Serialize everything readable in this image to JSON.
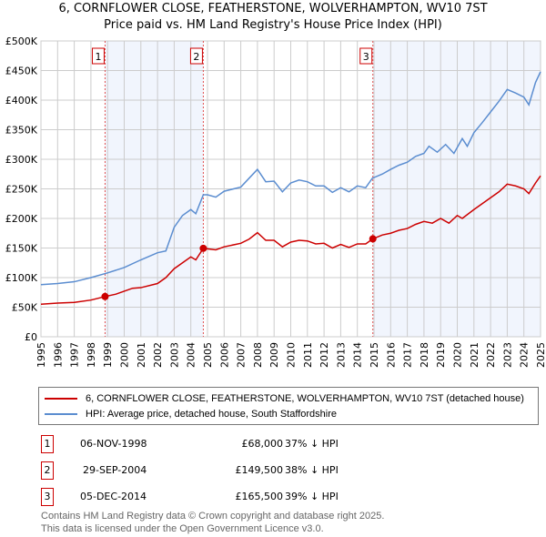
{
  "chart_data": {
    "type": "line",
    "title": "6, CORNFLOWER CLOSE, FEATHERSTONE, WOLVERHAMPTON, WV10 7ST",
    "subtitle": "Price paid vs. HM Land Registry's House Price Index (HPI)",
    "xlim": [
      1995,
      2025
    ],
    "ylim": [
      0,
      500000
    ],
    "x_ticks": [
      "1995",
      "1996",
      "1997",
      "1998",
      "1999",
      "2000",
      "2001",
      "2002",
      "2003",
      "2004",
      "2005",
      "2006",
      "2007",
      "2008",
      "2009",
      "2010",
      "2011",
      "2012",
      "2013",
      "2014",
      "2015",
      "2016",
      "2017",
      "2018",
      "2019",
      "2020",
      "2021",
      "2022",
      "2023",
      "2024",
      "2025"
    ],
    "y_ticks": [
      {
        "v": 0,
        "l": "£0"
      },
      {
        "v": 50000,
        "l": "£50K"
      },
      {
        "v": 100000,
        "l": "£100K"
      },
      {
        "v": 150000,
        "l": "£150K"
      },
      {
        "v": 200000,
        "l": "£200K"
      },
      {
        "v": 250000,
        "l": "£250K"
      },
      {
        "v": 300000,
        "l": "£300K"
      },
      {
        "v": 350000,
        "l": "£350K"
      },
      {
        "v": 400000,
        "l": "£400K"
      },
      {
        "v": 450000,
        "l": "£450K"
      },
      {
        "v": 500000,
        "l": "£500K"
      }
    ],
    "grid": true,
    "series": [
      {
        "name": "6, CORNFLOWER CLOSE, FEATHERSTONE, WOLVERHAMPTON, WV10 7ST (detached house)",
        "color": "#cc0000",
        "points": [
          [
            1995,
            55
          ],
          [
            1996,
            57
          ],
          [
            1997,
            58
          ],
          [
            1998,
            62
          ],
          [
            1998.85,
            68
          ],
          [
            1999.5,
            72
          ],
          [
            2000,
            77
          ],
          [
            2000.5,
            82
          ],
          [
            2001,
            83
          ],
          [
            2002,
            90
          ],
          [
            2002.5,
            100
          ],
          [
            2003,
            115
          ],
          [
            2003.5,
            125
          ],
          [
            2004,
            135
          ],
          [
            2004.3,
            130
          ],
          [
            2004.75,
            149.5
          ],
          [
            2005.5,
            147
          ],
          [
            2006,
            152
          ],
          [
            2007,
            158
          ],
          [
            2007.5,
            165
          ],
          [
            2008,
            176
          ],
          [
            2008.5,
            163
          ],
          [
            2009,
            163
          ],
          [
            2009.5,
            152
          ],
          [
            2010,
            160
          ],
          [
            2010.5,
            163
          ],
          [
            2011,
            162
          ],
          [
            2011.5,
            157
          ],
          [
            2012,
            158
          ],
          [
            2012.5,
            150
          ],
          [
            2013,
            156
          ],
          [
            2013.5,
            151
          ],
          [
            2014,
            157
          ],
          [
            2014.5,
            157
          ],
          [
            2014.93,
            165.5
          ],
          [
            2015.5,
            172
          ],
          [
            2016,
            175
          ],
          [
            2016.5,
            180
          ],
          [
            2017,
            183
          ],
          [
            2017.5,
            190
          ],
          [
            2018,
            195
          ],
          [
            2018.5,
            192
          ],
          [
            2019,
            200
          ],
          [
            2019.5,
            192
          ],
          [
            2020,
            205
          ],
          [
            2020.3,
            200
          ],
          [
            2021,
            215
          ],
          [
            2021.5,
            225
          ],
          [
            2022,
            235
          ],
          [
            2022.5,
            245
          ],
          [
            2023,
            258
          ],
          [
            2023.5,
            255
          ],
          [
            2024,
            250
          ],
          [
            2024.3,
            242
          ],
          [
            2024.7,
            260
          ],
          [
            2025,
            272
          ]
        ]
      },
      {
        "name": "HPI: Average price, detached house, South Staffordshire",
        "color": "#5b8dd0",
        "points": [
          [
            1995,
            88
          ],
          [
            1996,
            90
          ],
          [
            1997,
            93
          ],
          [
            1998,
            100
          ],
          [
            1999,
            108
          ],
          [
            2000,
            117
          ],
          [
            2001,
            130
          ],
          [
            2002,
            142
          ],
          [
            2002.5,
            145
          ],
          [
            2003,
            185
          ],
          [
            2003.5,
            205
          ],
          [
            2004,
            215
          ],
          [
            2004.3,
            208
          ],
          [
            2004.75,
            240
          ],
          [
            2005,
            240
          ],
          [
            2005.5,
            236
          ],
          [
            2006,
            246
          ],
          [
            2007,
            253
          ],
          [
            2007.5,
            268
          ],
          [
            2008,
            283
          ],
          [
            2008.5,
            262
          ],
          [
            2009,
            263
          ],
          [
            2009.5,
            245
          ],
          [
            2010,
            260
          ],
          [
            2010.5,
            265
          ],
          [
            2011,
            262
          ],
          [
            2011.5,
            255
          ],
          [
            2012,
            255
          ],
          [
            2012.5,
            244
          ],
          [
            2013,
            252
          ],
          [
            2013.5,
            245
          ],
          [
            2014,
            255
          ],
          [
            2014.5,
            252
          ],
          [
            2014.9,
            268
          ],
          [
            2015.5,
            275
          ],
          [
            2016,
            283
          ],
          [
            2016.5,
            290
          ],
          [
            2017,
            295
          ],
          [
            2017.5,
            305
          ],
          [
            2018,
            310
          ],
          [
            2018.3,
            322
          ],
          [
            2018.8,
            312
          ],
          [
            2019.3,
            325
          ],
          [
            2019.8,
            310
          ],
          [
            2020.3,
            335
          ],
          [
            2020.6,
            322
          ],
          [
            2021,
            345
          ],
          [
            2021.5,
            362
          ],
          [
            2022,
            380
          ],
          [
            2022.5,
            398
          ],
          [
            2023,
            418
          ],
          [
            2023.5,
            412
          ],
          [
            2024,
            405
          ],
          [
            2024.3,
            392
          ],
          [
            2024.7,
            430
          ],
          [
            2025,
            448
          ]
        ]
      }
    ],
    "sales": [
      {
        "n": "1",
        "x": 1998.85,
        "y": 68
      },
      {
        "n": "2",
        "x": 2004.75,
        "y": 149.5
      },
      {
        "n": "3",
        "x": 2014.93,
        "y": 165.5
      }
    ],
    "shaded": [
      [
        1998.85,
        2004.75
      ],
      [
        2014.93,
        2025
      ]
    ],
    "legend": "below"
  },
  "table": [
    {
      "n": "1",
      "date": "06-NOV-1998",
      "price": "£68,000",
      "hpi": "37% ↓ HPI"
    },
    {
      "n": "2",
      "date": "29-SEP-2004",
      "price": "£149,500",
      "hpi": "38% ↓ HPI"
    },
    {
      "n": "3",
      "date": "05-DEC-2014",
      "price": "£165,500",
      "hpi": "39% ↓ HPI"
    }
  ],
  "footer": [
    "Contains HM Land Registry data © Crown copyright and database right 2025.",
    "This data is licensed under the Open Government Licence v3.0."
  ]
}
